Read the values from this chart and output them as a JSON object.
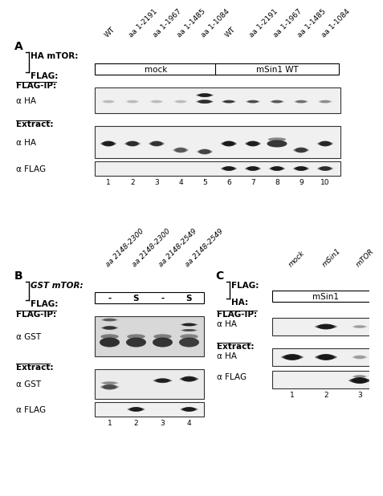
{
  "bg_color": "#ffffff",
  "panel_A": {
    "label": "A",
    "ha_mtor_label": "HA mTOR:",
    "flag_label": "FLAG:",
    "col_labels": [
      "WT",
      "aa 1-2191",
      "aa 1-1967",
      "aa 1-1485",
      "aa 1-1084",
      "WT",
      "aa 1-2191",
      "aa 1-1967",
      "aa 1-1485",
      "aa 1-1084"
    ],
    "group_labels": [
      "mock",
      "mSin1 WT"
    ],
    "lane_numbers": [
      "1",
      "2",
      "3",
      "4",
      "5",
      "6",
      "7",
      "8",
      "9",
      "10"
    ]
  },
  "panel_B": {
    "label": "B",
    "gst_mtor_label": "GST mTOR:",
    "flag_label": "FLAG:",
    "col_labels": [
      "aa 2148-2300",
      "aa 2148-2300",
      "aa 2148-2549",
      "aa 2148-2549"
    ],
    "flag_values": [
      "-",
      "S",
      "-",
      "S"
    ],
    "lane_numbers": [
      "1",
      "2",
      "3",
      "4"
    ]
  },
  "panel_C": {
    "label": "C",
    "flag_label": "FLAG:",
    "ha_label": "HA:",
    "col_labels": [
      "mock",
      "mSin1",
      "mTOR"
    ],
    "ha_value": "mSin1",
    "lane_numbers": [
      "1",
      "2",
      "3"
    ]
  },
  "font_size_label": 8,
  "font_size_tick": 6.5,
  "font_size_panel": 10,
  "text_color": "#000000"
}
